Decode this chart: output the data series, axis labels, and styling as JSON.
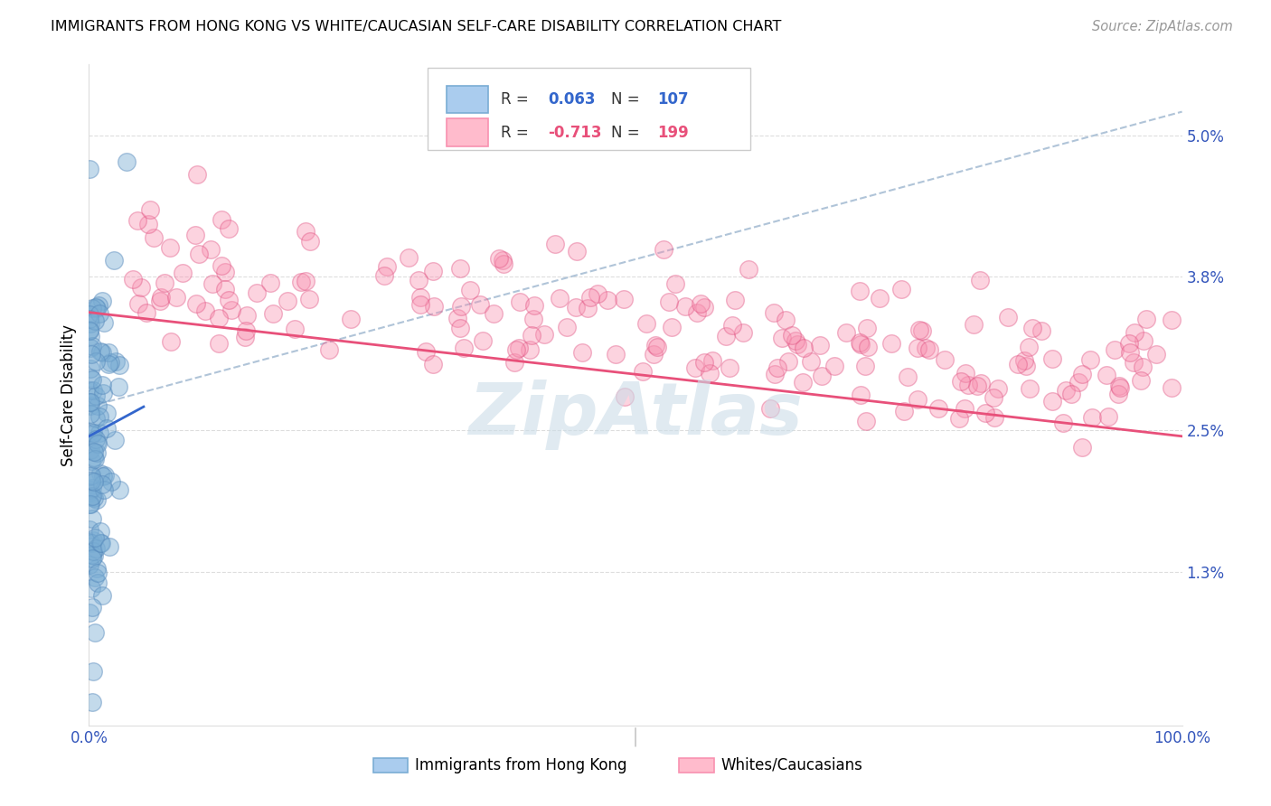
{
  "title": "IMMIGRANTS FROM HONG KONG VS WHITE/CAUCASIAN SELF-CARE DISABILITY CORRELATION CHART",
  "source": "Source: ZipAtlas.com",
  "ylabel": "Self-Care Disability",
  "xlim": [
    0.0,
    1.0
  ],
  "ylim": [
    0.0,
    0.056
  ],
  "ytick_vals": [
    0.013,
    0.025,
    0.038,
    0.05
  ],
  "ytick_labels": [
    "1.3%",
    "2.5%",
    "3.8%",
    "5.0%"
  ],
  "blue_color": "#7aadd4",
  "blue_edge": "#5588bb",
  "pink_color": "#f891b0",
  "pink_edge": "#e05080",
  "trendline_blue_color": "#3366CC",
  "trendline_pink_color": "#e8507a",
  "trendline_dashed_color": "#b0c4d8",
  "watermark": "ZipAtlas",
  "watermark_color": "#ccdde8",
  "legend_blue_r": "0.063",
  "legend_blue_n": "107",
  "legend_pink_r": "-0.713",
  "legend_pink_n": "199",
  "blue_r_color": "#3366CC",
  "blue_n_color": "#3366CC",
  "pink_r_color": "#e8507a",
  "pink_n_color": "#e8507a"
}
